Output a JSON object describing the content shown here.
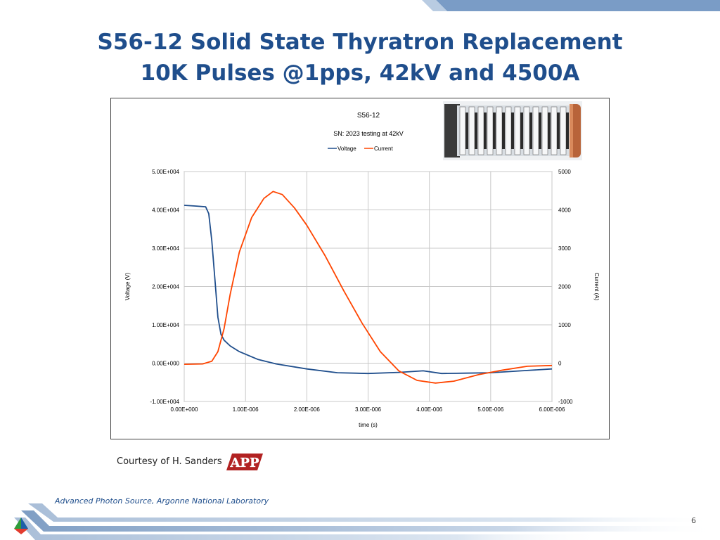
{
  "slide": {
    "title_line1": "S56-12 Solid State Thyratron Replacement",
    "title_line2": "10K Pulses @1pps, 42kV and 4500A",
    "courtesy": "Courtesy of H. Sanders",
    "logo_text": "APP",
    "footer": "Advanced Photon Source, Argonne National Laboratory",
    "page_number": "6",
    "colors": {
      "title": "#1F4E8C",
      "accent_bar": "#7A9CC6",
      "voltage": "#1F4E8C",
      "current": "#FF4500"
    }
  },
  "chart_data": {
    "type": "line",
    "title": "S56-12",
    "subtitle": "SN: 2023 testing at 42kV",
    "xlabel": "time (s)",
    "ylabel": "Voltage (V)",
    "y2label": "Current (A)",
    "xlim": [
      0,
      6e-06
    ],
    "ylim": [
      -10000,
      50000
    ],
    "y2lim": [
      -1000,
      5000
    ],
    "x_ticks": [
      "0.00E+000",
      "1.00E-006",
      "2.00E-006",
      "3.00E-006",
      "4.00E-006",
      "5.00E-006",
      "6.00E-006"
    ],
    "y_ticks": [
      "5.00E+004",
      "4.00E+004",
      "3.00E+004",
      "2.00E+004",
      "1.00E+004",
      "0.00E+000",
      "-1.00E+004"
    ],
    "y2_ticks": [
      "5000",
      "4000",
      "3000",
      "2000",
      "1000",
      "0",
      "-1000"
    ],
    "grid": true,
    "legend": "top-center",
    "series": [
      {
        "name": "Voltage",
        "axis": "left",
        "color": "#1F4E8C",
        "x": [
          0,
          2e-07,
          3.5e-07,
          4e-07,
          4.5e-07,
          5e-07,
          5.5e-07,
          6e-07,
          6.5e-07,
          7.5e-07,
          9e-07,
          1.2e-06,
          1.5e-06,
          2e-06,
          2.5e-06,
          3e-06,
          3.5e-06,
          3.9e-06,
          4.2e-06,
          4.6e-06,
          5e-06,
          5.5e-06,
          6e-06
        ],
        "values": [
          41200,
          41000,
          40800,
          39000,
          32000,
          22000,
          12000,
          7500,
          6000,
          4500,
          3000,
          1000,
          -200,
          -1500,
          -2500,
          -2700,
          -2400,
          -2000,
          -2700,
          -2600,
          -2500,
          -2000,
          -1500
        ]
      },
      {
        "name": "Current",
        "axis": "right",
        "color": "#FF4500",
        "x": [
          0,
          3e-07,
          4.5e-07,
          5.5e-07,
          6.5e-07,
          7.5e-07,
          9e-07,
          1.1e-06,
          1.3e-06,
          1.45e-06,
          1.6e-06,
          1.8e-06,
          2e-06,
          2.3e-06,
          2.6e-06,
          2.9e-06,
          3.2e-06,
          3.5e-06,
          3.8e-06,
          4.1e-06,
          4.4e-06,
          4.8e-06,
          5.2e-06,
          5.6e-06,
          6e-06
        ],
        "values": [
          -30,
          -20,
          50,
          300,
          900,
          1800,
          2900,
          3800,
          4300,
          4480,
          4400,
          4050,
          3600,
          2800,
          1900,
          1050,
          300,
          -200,
          -450,
          -520,
          -470,
          -300,
          -180,
          -80,
          -60
        ]
      }
    ]
  }
}
